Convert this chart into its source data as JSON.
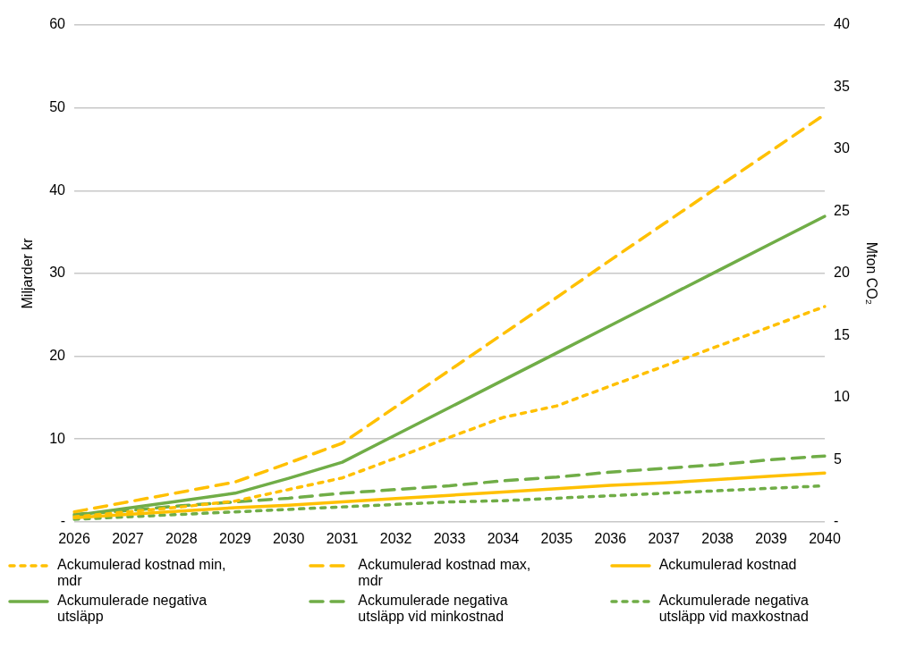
{
  "chart_data": {
    "type": "line",
    "ylabel": "Miljarder kr",
    "y2label": "Mton CO₂",
    "categories": [
      "2026",
      "2027",
      "2028",
      "2029",
      "2030",
      "2031",
      "2032",
      "2033",
      "2034",
      "2035",
      "2036",
      "2037",
      "2038",
      "2039",
      "2040"
    ],
    "ylim": [
      0,
      60
    ],
    "yticks": [
      {
        "value": 0,
        "label": "-"
      },
      10,
      20,
      30,
      40,
      50,
      60
    ],
    "y2lim": [
      0,
      40
    ],
    "y2ticks": [
      {
        "value": 0,
        "label": "-"
      },
      5,
      10,
      15,
      20,
      25,
      30,
      35,
      40
    ],
    "grid": "y",
    "legend": "bottom",
    "marker": "none",
    "series": [
      {
        "name": "Ackumulerad kostnad min, mdr",
        "color": "#ffc000",
        "line_style": "dotted",
        "values": [
          0.6,
          1.2,
          1.8,
          2.5,
          3.9,
          5.3,
          7.7,
          10.2,
          12.6,
          14.0,
          16.4,
          18.8,
          21.2,
          23.6,
          26.0
        ]
      },
      {
        "name": "Ackumulerad kostnad max, mdr",
        "color": "#ffc000",
        "line_style": "dashed",
        "values": [
          1.2,
          2.4,
          3.6,
          4.8,
          7.1,
          9.5,
          13.9,
          18.3,
          22.7,
          27.1,
          31.6,
          36.0,
          40.4,
          44.8,
          49.2
        ]
      },
      {
        "name": "Ackumulerad kostnad",
        "color": "#ffc000",
        "line_style": "solid",
        "values": [
          0.5,
          0.9,
          1.3,
          1.7,
          2.0,
          2.4,
          2.8,
          3.2,
          3.6,
          4.0,
          4.4,
          4.7,
          5.1,
          5.5,
          5.9
        ]
      },
      {
        "name": "Ackumulerade negativa utsläpp",
        "color": "#70ad47",
        "line_style": "solid",
        "axis": "y2",
        "values": [
          0.5,
          1.1,
          1.7,
          2.3,
          3.5,
          4.8,
          7.0,
          9.2,
          11.4,
          13.6,
          15.8,
          18.0,
          20.2,
          22.4,
          24.6
        ]
      },
      {
        "name": "Ackumulerade negativa utsläpp vid minkostnad",
        "color": "#70ad47",
        "line_style": "dashed",
        "axis": "y2",
        "values": [
          0.6,
          0.9,
          1.3,
          1.6,
          1.9,
          2.3,
          2.6,
          2.9,
          3.3,
          3.6,
          4.0,
          4.3,
          4.6,
          5.0,
          5.3
        ]
      },
      {
        "name": "Ackumulerade negativa utsläpp vid maxkostnad",
        "color": "#70ad47",
        "line_style": "dotted",
        "axis": "y2",
        "values": [
          0.2,
          0.4,
          0.6,
          0.8,
          1.0,
          1.2,
          1.4,
          1.6,
          1.7,
          1.9,
          2.1,
          2.3,
          2.5,
          2.7,
          2.9
        ]
      }
    ]
  }
}
